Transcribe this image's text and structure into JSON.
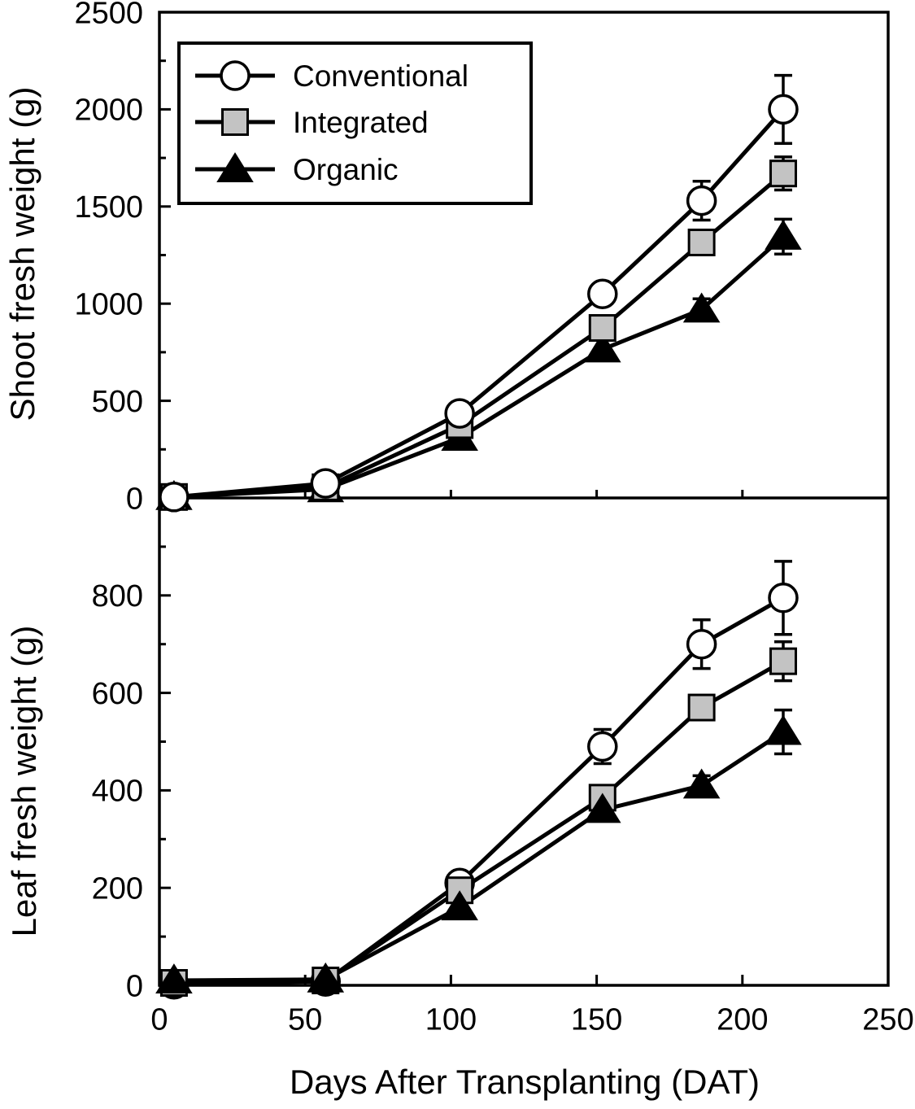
{
  "figure": {
    "description": "Two stacked line-chart panels sharing one x-axis",
    "background": "#ffffff",
    "foreground": "#000000"
  },
  "legend": {
    "position": "top-left",
    "items": [
      {
        "label": "Conventional",
        "marker": "circle",
        "fill": "#ffffff"
      },
      {
        "label": "Integrated",
        "marker": "square",
        "fill": "#c3c3c3"
      },
      {
        "label": "Organic",
        "marker": "triangle",
        "fill": "#000000"
      }
    ]
  },
  "chart_data": [
    {
      "type": "line",
      "panel": "top",
      "title": "",
      "ylabel": "Shoot fresh weight (g)",
      "xlabel": "",
      "x": [
        5,
        57,
        103,
        152,
        186,
        214
      ],
      "xlim": [
        0,
        250
      ],
      "xticks": [
        0,
        50,
        100,
        150,
        200,
        250
      ],
      "ylim": [
        0,
        2500
      ],
      "yticks": [
        0,
        500,
        1000,
        1500,
        2000,
        2500
      ],
      "y_minor_step": 250,
      "grid": false,
      "legend_position": "upper-left",
      "series": [
        {
          "name": "Conventional",
          "marker": "circle",
          "values": [
            5,
            75,
            435,
            1050,
            1530,
            2000
          ],
          "errors": [
            0,
            0,
            0,
            0,
            100,
            175
          ]
        },
        {
          "name": "Integrated",
          "marker": "square",
          "values": [
            5,
            55,
            375,
            875,
            1315,
            1670
          ],
          "errors": [
            0,
            0,
            0,
            0,
            60,
            85
          ]
        },
        {
          "name": "Organic",
          "marker": "triangle",
          "values": [
            5,
            45,
            310,
            765,
            970,
            1345
          ],
          "errors": [
            0,
            0,
            0,
            0,
            55,
            90
          ]
        }
      ],
      "marker_z_order": [
        "Organic",
        "Integrated",
        "Conventional"
      ]
    },
    {
      "type": "line",
      "panel": "bottom",
      "title": "",
      "ylabel": "Leaf fresh weight (g)",
      "xlabel": "Days After Transplanting (DAT)",
      "x": [
        5,
        57,
        103,
        152,
        186,
        214
      ],
      "xlim": [
        0,
        250
      ],
      "xticks": [
        0,
        50,
        100,
        150,
        200,
        250
      ],
      "ylim": [
        0,
        1000
      ],
      "yticks": [
        0,
        200,
        400,
        600,
        800
      ],
      "y_minor_step": 100,
      "grid": false,
      "series": [
        {
          "name": "Conventional",
          "marker": "circle",
          "values": [
            2,
            8,
            210,
            490,
            700,
            795
          ],
          "errors": [
            0,
            0,
            0,
            35,
            50,
            75
          ]
        },
        {
          "name": "Integrated",
          "marker": "square",
          "values": [
            5,
            10,
            195,
            385,
            570,
            665
          ],
          "errors": [
            0,
            0,
            0,
            0,
            0,
            40
          ]
        },
        {
          "name": "Organic",
          "marker": "triangle",
          "values": [
            10,
            12,
            160,
            360,
            410,
            520
          ],
          "errors": [
            0,
            0,
            0,
            0,
            20,
            45
          ]
        }
      ],
      "marker_z_order": [
        "Conventional",
        "Integrated",
        "Organic"
      ]
    }
  ]
}
